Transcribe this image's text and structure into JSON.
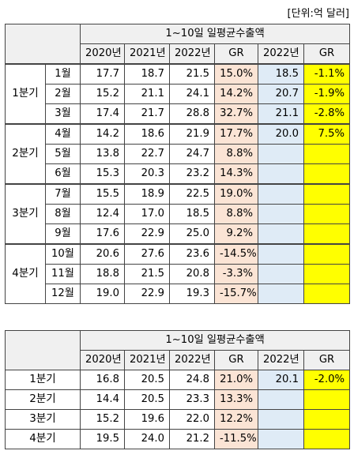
{
  "unit_label": "[단위:억 달러]",
  "table1": {
    "title": "1~10일 일평균수출액",
    "headers": [
      "2020년",
      "2021년",
      "2022년",
      "GR",
      "2022년",
      "GR"
    ],
    "groups": [
      {
        "quarter": "1분기",
        "rows": [
          {
            "month": "1월",
            "y2020": "17.7",
            "y2021": "18.7",
            "y2022": "21.5",
            "gr": "15.0%",
            "y2022b": "18.5",
            "grb": "-1.1%"
          },
          {
            "month": "2월",
            "y2020": "15.2",
            "y2021": "21.1",
            "y2022": "24.1",
            "gr": "14.2%",
            "y2022b": "20.7",
            "grb": "-1.9%"
          },
          {
            "month": "3월",
            "y2020": "17.4",
            "y2021": "21.7",
            "y2022": "28.8",
            "gr": "32.7%",
            "y2022b": "21.1",
            "grb": "-2.8%"
          }
        ]
      },
      {
        "quarter": "2분기",
        "rows": [
          {
            "month": "4월",
            "y2020": "14.2",
            "y2021": "18.6",
            "y2022": "21.9",
            "gr": "17.7%",
            "y2022b": "20.0",
            "grb": "7.5%"
          },
          {
            "month": "5월",
            "y2020": "13.8",
            "y2021": "22.7",
            "y2022": "24.7",
            "gr": "8.8%",
            "y2022b": "",
            "grb": ""
          },
          {
            "month": "6월",
            "y2020": "15.3",
            "y2021": "20.3",
            "y2022": "23.2",
            "gr": "14.3%",
            "y2022b": "",
            "grb": ""
          }
        ]
      },
      {
        "quarter": "3분기",
        "rows": [
          {
            "month": "7월",
            "y2020": "15.5",
            "y2021": "18.9",
            "y2022": "22.5",
            "gr": "19.0%",
            "y2022b": "",
            "grb": ""
          },
          {
            "month": "8월",
            "y2020": "12.4",
            "y2021": "17.0",
            "y2022": "18.5",
            "gr": "8.8%",
            "y2022b": "",
            "grb": ""
          },
          {
            "month": "9월",
            "y2020": "17.6",
            "y2021": "22.9",
            "y2022": "25.0",
            "gr": "9.2%",
            "y2022b": "",
            "grb": ""
          }
        ]
      },
      {
        "quarter": "4분기",
        "rows": [
          {
            "month": "10월",
            "y2020": "20.6",
            "y2021": "27.6",
            "y2022": "23.6",
            "gr": "-14.5%",
            "y2022b": "",
            "grb": ""
          },
          {
            "month": "11월",
            "y2020": "18.8",
            "y2021": "21.5",
            "y2022": "20.8",
            "gr": "-3.3%",
            "y2022b": "",
            "grb": ""
          },
          {
            "month": "12월",
            "y2020": "19.0",
            "y2021": "22.9",
            "y2022": "19.3",
            "gr": "-15.7%",
            "y2022b": "",
            "grb": ""
          }
        ]
      }
    ]
  },
  "table2": {
    "title": "1~10일 일평균수출액",
    "headers": [
      "2020년",
      "2021년",
      "2022년",
      "GR",
      "2022년",
      "GR"
    ],
    "rows": [
      {
        "quarter": "1분기",
        "y2020": "16.8",
        "y2021": "20.5",
        "y2022": "24.8",
        "gr": "21.0%",
        "y2022b": "20.1",
        "grb": "-2.0%"
      },
      {
        "quarter": "2분기",
        "y2020": "14.4",
        "y2021": "20.5",
        "y2022": "23.3",
        "gr": "13.3%",
        "y2022b": "",
        "grb": ""
      },
      {
        "quarter": "3분기",
        "y2020": "15.2",
        "y2021": "19.6",
        "y2022": "22.0",
        "gr": "12.2%",
        "y2022b": "",
        "grb": ""
      },
      {
        "quarter": "4분기",
        "y2020": "19.5",
        "y2021": "24.0",
        "y2022": "21.2",
        "gr": "-11.5%",
        "y2022b": "",
        "grb": ""
      }
    ]
  },
  "colors": {
    "header_bg": "#f0f0f0",
    "gr_bg": "#fbe4d5",
    "y2022b_bg": "#dfebf6",
    "grb_bg": "#ffff00"
  }
}
